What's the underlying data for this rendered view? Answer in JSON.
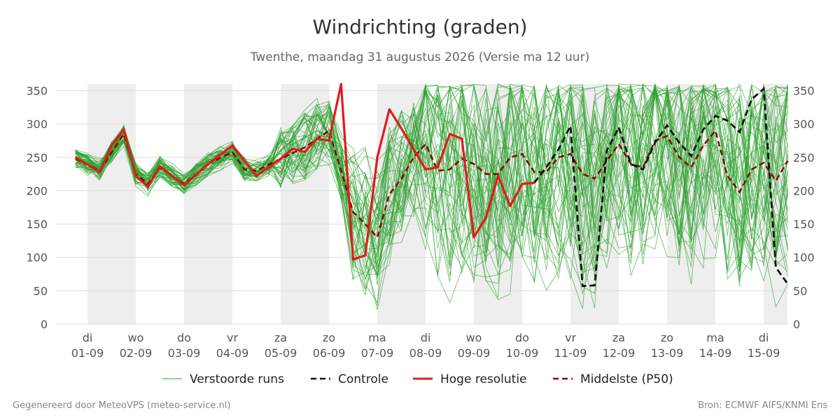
{
  "colors": {
    "members": "#2ca02c",
    "control": "#111111",
    "hires": "#e31a1c",
    "median": "#8b0000",
    "grid": "#dddddd",
    "shade": "#eeeeee"
  },
  "chart_data": {
    "type": "line",
    "title": "Windrichting (graden)",
    "subtitle": "Twenthe, maandag 31 augustus 2026 (Versie ma 12 uur)",
    "footer_left": "Gegenereerd door MeteoVPS (meteo-service.nl)",
    "footer_right": "Bron: ECMWF AIFS/KNMI Ens",
    "ylim": [
      0,
      360
    ],
    "yticks": [
      0,
      50,
      100,
      150,
      200,
      250,
      300,
      350
    ],
    "xlim": [
      -0.3,
      14.5
    ],
    "shaded_days": [
      0,
      2,
      4,
      6,
      8,
      10,
      12,
      14
    ],
    "x_ticks": [
      {
        "day": "di",
        "date": "01-09"
      },
      {
        "day": "wo",
        "date": "02-09"
      },
      {
        "day": "do",
        "date": "03-09"
      },
      {
        "day": "vr",
        "date": "04-09"
      },
      {
        "day": "za",
        "date": "05-09"
      },
      {
        "day": "zo",
        "date": "06-09"
      },
      {
        "day": "ma",
        "date": "07-09"
      },
      {
        "day": "di",
        "date": "08-09"
      },
      {
        "day": "wo",
        "date": "09-09"
      },
      {
        "day": "do",
        "date": "10-09"
      },
      {
        "day": "vr",
        "date": "11-09"
      },
      {
        "day": "za",
        "date": "12-09"
      },
      {
        "day": "zo",
        "date": "13-09"
      },
      {
        "day": "ma",
        "date": "14-09"
      },
      {
        "day": "di",
        "date": "15-09"
      }
    ],
    "legend": [
      {
        "key": "members",
        "label": "Verstoorde runs",
        "style": "thin"
      },
      {
        "key": "control",
        "label": "Controle",
        "style": "dashed"
      },
      {
        "key": "hires",
        "label": "Hoge resolutie",
        "style": "solid"
      },
      {
        "key": "median",
        "label": "Middelste (P50)",
        "style": "dashed"
      }
    ],
    "series": {
      "hires": {
        "x": [
          -0.25,
          0.25,
          0.5,
          0.75,
          1.0,
          1.25,
          1.5,
          2.0,
          2.5,
          3.0,
          3.5,
          4.0,
          4.25,
          4.5,
          4.75,
          5.0,
          5.25,
          5.5,
          5.75,
          6.0,
          6.25,
          6.5,
          7.0,
          7.25,
          7.5,
          7.75,
          8.0,
          8.25,
          8.5,
          8.75,
          9.0,
          9.25
        ],
        "y": [
          250,
          228,
          268,
          292,
          222,
          206,
          237,
          208,
          240,
          268,
          222,
          248,
          263,
          258,
          278,
          275,
          360,
          97,
          103,
          250,
          322,
          293,
          232,
          235,
          285,
          278,
          130,
          160,
          222,
          177,
          210,
          212
        ]
      },
      "control": {
        "x": [
          9.25,
          9.5,
          9.75,
          10.0,
          10.25,
          10.5,
          10.75,
          11.0,
          11.25,
          11.5,
          11.75,
          12.0,
          12.25,
          12.5,
          12.75,
          13.0,
          13.25,
          13.5,
          13.75,
          14.0,
          14.25,
          14.5
        ],
        "y": [
          212,
          235,
          262,
          297,
          57,
          58,
          260,
          295,
          240,
          232,
          272,
          298,
          272,
          252,
          292,
          312,
          305,
          288,
          337,
          353,
          85,
          60
        ]
      },
      "median": {
        "x": [
          -0.25,
          0.25,
          0.75,
          1.0,
          1.25,
          1.5,
          2.0,
          2.5,
          3.0,
          3.25,
          3.5,
          4.0,
          4.5,
          5.0,
          5.25,
          5.5,
          5.75,
          6.0,
          6.25,
          6.5,
          6.75,
          7.0,
          7.25,
          7.5,
          7.75,
          8.0,
          8.25,
          8.5,
          8.75,
          9.0,
          9.25,
          9.5,
          9.75,
          10.0,
          10.25,
          10.5,
          10.75,
          11.0,
          11.25,
          11.5,
          11.75,
          12.0,
          12.25,
          12.5,
          12.75,
          13.0,
          13.25,
          13.5,
          13.75,
          14.0,
          14.25,
          14.5
        ],
        "y": [
          248,
          230,
          285,
          225,
          210,
          235,
          210,
          240,
          258,
          232,
          230,
          248,
          265,
          290,
          230,
          168,
          150,
          130,
          195,
          218,
          250,
          270,
          230,
          232,
          248,
          240,
          225,
          225,
          250,
          255,
          228,
          228,
          250,
          255,
          225,
          218,
          245,
          270,
          240,
          235,
          275,
          282,
          250,
          235,
          268,
          290,
          222,
          198,
          232,
          242,
          215,
          245
        ]
      }
    }
  }
}
